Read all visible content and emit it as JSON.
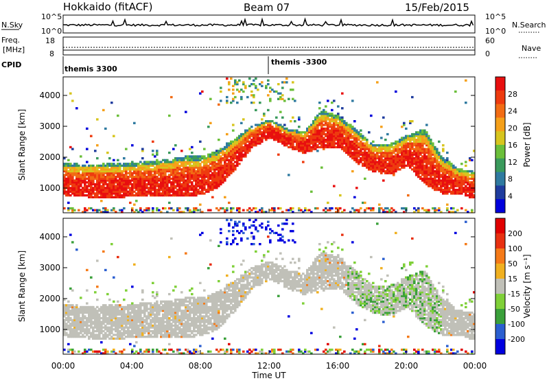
{
  "header": {
    "site": "Hokkaido (fitACF)",
    "beam": "Beam 07",
    "date": "15/Feb/2015"
  },
  "nsky_panel": {
    "left_label": "N.Sky",
    "right_label": "N.Search",
    "left_ticks": [
      "10^5",
      "10^0"
    ],
    "right_ticks": [
      "10^5",
      "10^0"
    ]
  },
  "freq_panel": {
    "left_label_line1": "Freq.",
    "left_label_line2": "[MHz]",
    "right_label": "Nave",
    "left_ticks": [
      "18",
      "8"
    ],
    "right_ticks": [
      "60",
      "0"
    ]
  },
  "cpid_panel": {
    "label": "CPID",
    "modes": [
      "themis 3300",
      "themis -3300"
    ]
  },
  "chart_data": [
    {
      "type": "heatmap",
      "name": "power",
      "ylabel": "Slant Range [km]",
      "ytick_labels": [
        "1000",
        "2000",
        "3000",
        "4000"
      ],
      "yticks": [
        1000,
        2000,
        3000,
        4000
      ],
      "ylim": [
        200,
        4600
      ],
      "xlim": [
        0,
        24
      ],
      "colorbar_label": "Power [dB]",
      "colorbar_ticks": [
        "28",
        "24",
        "20",
        "16",
        "12",
        "8",
        "4"
      ],
      "colors": [
        "#0000dc",
        "#1f3c9e",
        "#2f7aa0",
        "#3a9a5c",
        "#6bbf3a",
        "#d7c51e",
        "#f5a01a",
        "#f26c14",
        "#ee3b0f",
        "#e80f0f"
      ]
    },
    {
      "type": "heatmap",
      "name": "velocity",
      "ylabel": "Slant Range [km]",
      "ytick_labels": [
        "1000",
        "2000",
        "3000",
        "4000"
      ],
      "yticks": [
        1000,
        2000,
        3000,
        4000
      ],
      "ylim": [
        200,
        4600
      ],
      "xlim": [
        0,
        24
      ],
      "xlabel": "Time UT",
      "xtick_labels": [
        "00:00",
        "04:00",
        "08:00",
        "12:00",
        "16:00",
        "20:00",
        "00:00"
      ],
      "xticks": [
        0,
        4,
        8,
        12,
        16,
        20,
        24
      ],
      "colorbar_label": "Velocity [m s⁻¹]",
      "colorbar_ticks": [
        "200",
        "100",
        "50",
        "15",
        "-15",
        "-50",
        "-100",
        "-200"
      ],
      "colors": [
        "#0000e0",
        "#2b5fd0",
        "#3aa03a",
        "#7fd038",
        "#c0c0b8",
        "#f0b020",
        "#f57a18",
        "#e83010",
        "#e00000"
      ]
    }
  ]
}
